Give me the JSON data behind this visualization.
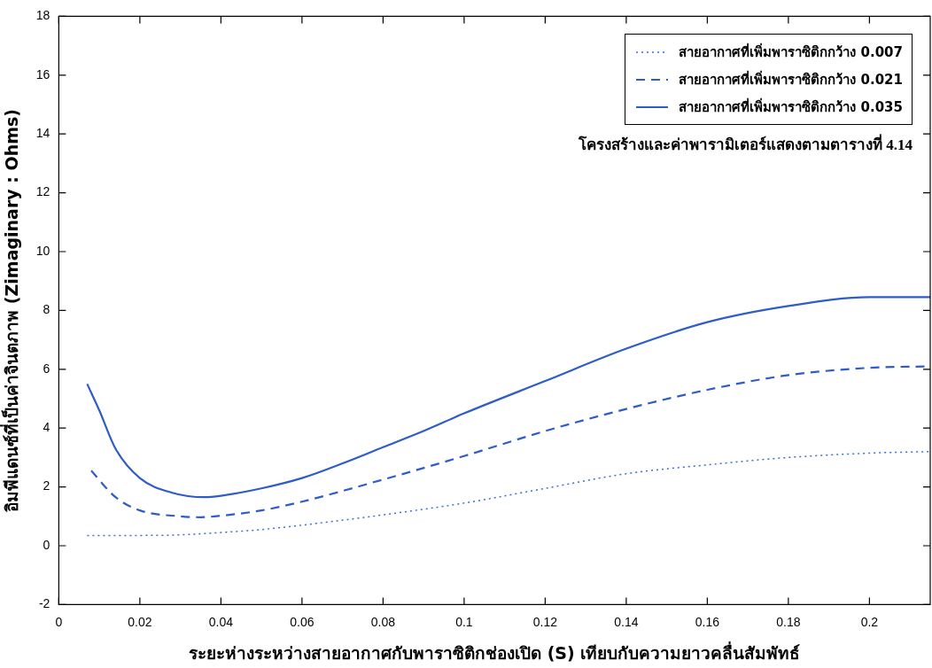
{
  "chart_data": {
    "type": "line",
    "xlabel": "ระยะห่างระหว่างสายอากาศกับพาราซิติกช่องเปิด (S) เทียบกับความยาวคลื่นสัมพัทธ์",
    "ylabel": "อิมพีแดนซ์ที่เป็นค่าจินตภาพ (Zimaginary : Ohms)",
    "annotations": [
      "โครงสร้างและค่าพารามิเตอร์แสดงตามตารางที่ 4.14"
    ],
    "xlim": [
      0,
      0.215
    ],
    "xticks": [
      0,
      0.02,
      0.04,
      0.06,
      0.08,
      0.1,
      0.12,
      0.14,
      0.16,
      0.18,
      0.2
    ],
    "ylim": [
      -2,
      18
    ],
    "yticks": [
      -2,
      0,
      2,
      4,
      6,
      8,
      10,
      12,
      14,
      16,
      18
    ],
    "grid": false,
    "legend": "top right",
    "marker": "none",
    "series": [
      {
        "name": "สายอากาศที่เพิ่มพาราซิติกกว้าง 0.007",
        "color": "#3a6fd8",
        "line_style": "dotted",
        "x": [
          0.007,
          0.02,
          0.03,
          0.04,
          0.05,
          0.06,
          0.08,
          0.1,
          0.12,
          0.14,
          0.16,
          0.18,
          0.2,
          0.215
        ],
        "values": [
          0.35,
          0.35,
          0.37,
          0.45,
          0.55,
          0.7,
          1.05,
          1.45,
          1.95,
          2.45,
          2.75,
          3.0,
          3.15,
          3.2
        ]
      },
      {
        "name": "สายอากาศที่เพิ่มพาราซิติกกว้าง 0.021",
        "color": "#2e5cc8",
        "line_style": "dashed",
        "x": [
          0.008,
          0.014,
          0.02,
          0.03,
          0.035,
          0.04,
          0.05,
          0.06,
          0.08,
          0.1,
          0.12,
          0.14,
          0.16,
          0.18,
          0.2,
          0.215
        ],
        "values": [
          2.55,
          1.65,
          1.2,
          1.0,
          0.97,
          1.02,
          1.2,
          1.5,
          2.25,
          3.05,
          3.9,
          4.65,
          5.3,
          5.8,
          6.05,
          6.1
        ]
      },
      {
        "name": "สายอากาศที่เพิ่มพาราซิติกกว้าง 0.035",
        "color": "#2e5cc8",
        "line_style": "solid",
        "x": [
          0.007,
          0.01,
          0.014,
          0.02,
          0.028,
          0.036,
          0.04,
          0.05,
          0.06,
          0.07,
          0.08,
          0.09,
          0.1,
          0.12,
          0.14,
          0.16,
          0.18,
          0.2,
          0.215
        ],
        "values": [
          5.5,
          4.6,
          3.3,
          2.3,
          1.8,
          1.65,
          1.7,
          1.95,
          2.3,
          2.8,
          3.35,
          3.9,
          4.5,
          5.6,
          6.7,
          7.6,
          8.15,
          8.45,
          8.45
        ]
      }
    ]
  }
}
